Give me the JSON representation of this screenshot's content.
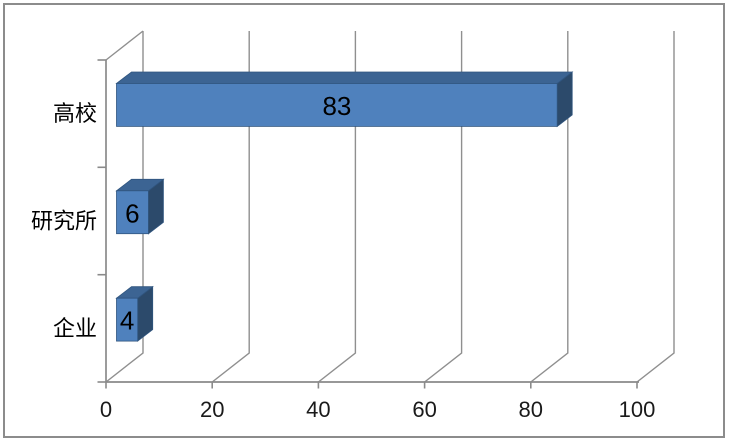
{
  "figure": {
    "background": "#ffffff",
    "border_color": "#8c8c8c"
  },
  "chart_data": {
    "type": "bar",
    "orientation": "horizontal",
    "style": "3d",
    "categories": [
      "高校",
      "研究所",
      "企业"
    ],
    "values": [
      83,
      6,
      4
    ],
    "value_labels": [
      "83",
      "6",
      "4"
    ],
    "x_ticks": [
      "0",
      "20",
      "40",
      "60",
      "80",
      "100"
    ],
    "x_tick_values": [
      0,
      20,
      40,
      60,
      80,
      100
    ],
    "xlim": [
      0,
      100
    ],
    "grid": true,
    "legend": false,
    "colors": {
      "bar_front": "#4f81bd",
      "bar_top": "#3c6493",
      "bar_side": "#2c4a6b",
      "bar_outline": "#30557f",
      "grid_line": "#8f8f8f",
      "axis_line": "#8a8a8a",
      "label_text": "#000000",
      "tick_text": "#1a1a1a"
    }
  }
}
